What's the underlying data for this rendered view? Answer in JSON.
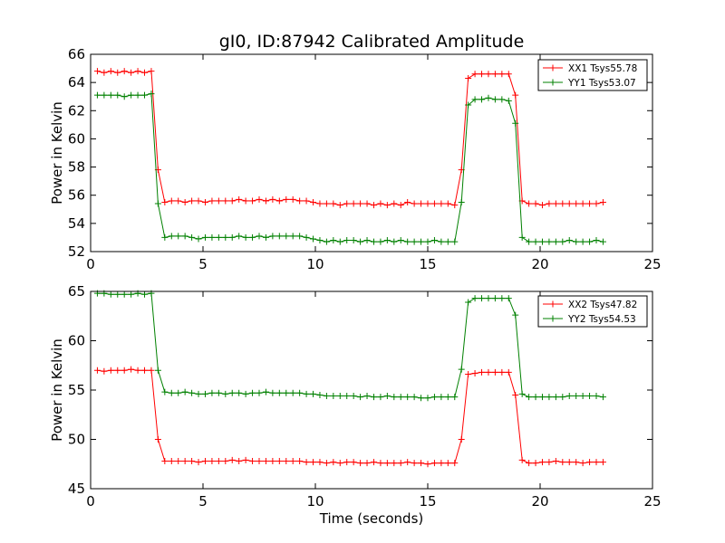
{
  "title": "gI0, ID:87942 Calibrated Amplitude",
  "xlabel": "Time (seconds)",
  "colors": {
    "red": "#ff0000",
    "green": "#008000",
    "axis": "#000000"
  },
  "chart_data": [
    {
      "type": "line",
      "title": "gI0, ID:87942 Calibrated Amplitude",
      "xlabel": "",
      "ylabel": "Power in Kelvin",
      "xlim": [
        0,
        25
      ],
      "ylim": [
        52,
        66
      ],
      "xticks": [
        0,
        5,
        10,
        15,
        20,
        25
      ],
      "yticks": [
        52,
        54,
        56,
        58,
        60,
        62,
        64,
        66
      ],
      "grid": false,
      "legend_loc": "top-right",
      "series": [
        {
          "name": "XX1 Tsys55.78",
          "color": "#ff0000",
          "x": [
            0.3,
            0.6,
            0.9,
            1.2,
            1.5,
            1.8,
            2.1,
            2.4,
            2.7,
            3.0,
            3.3,
            3.6,
            3.9,
            4.2,
            4.5,
            4.8,
            5.1,
            5.4,
            5.7,
            6.0,
            6.3,
            6.6,
            6.9,
            7.2,
            7.5,
            7.8,
            8.1,
            8.4,
            8.7,
            9.0,
            9.3,
            9.6,
            9.9,
            10.2,
            10.5,
            10.8,
            11.1,
            11.4,
            11.7,
            12.0,
            12.3,
            12.6,
            12.9,
            13.2,
            13.5,
            13.8,
            14.1,
            14.4,
            14.7,
            15.0,
            15.3,
            15.6,
            15.9,
            16.2,
            16.5,
            16.8,
            17.1,
            17.4,
            17.7,
            18.0,
            18.3,
            18.6,
            18.9,
            19.2,
            19.5,
            19.8,
            20.1,
            20.4,
            20.7,
            21.0,
            21.3,
            21.6,
            21.9,
            22.2,
            22.5,
            22.8
          ],
          "y": [
            64.8,
            64.7,
            64.8,
            64.7,
            64.8,
            64.7,
            64.8,
            64.7,
            64.8,
            57.8,
            55.5,
            55.6,
            55.6,
            55.5,
            55.6,
            55.6,
            55.5,
            55.6,
            55.6,
            55.6,
            55.6,
            55.7,
            55.6,
            55.6,
            55.7,
            55.6,
            55.7,
            55.6,
            55.7,
            55.7,
            55.6,
            55.6,
            55.5,
            55.4,
            55.4,
            55.4,
            55.3,
            55.4,
            55.4,
            55.4,
            55.4,
            55.3,
            55.4,
            55.3,
            55.4,
            55.3,
            55.5,
            55.4,
            55.4,
            55.4,
            55.4,
            55.4,
            55.4,
            55.3,
            57.8,
            64.3,
            64.6,
            64.6,
            64.6,
            64.6,
            64.6,
            64.6,
            63.1,
            55.6,
            55.4,
            55.4,
            55.3,
            55.4,
            55.4,
            55.4,
            55.4,
            55.4,
            55.4,
            55.4,
            55.4,
            55.5
          ]
        },
        {
          "name": "YY1 Tsys53.07",
          "color": "#008000",
          "x": [
            0.3,
            0.6,
            0.9,
            1.2,
            1.5,
            1.8,
            2.1,
            2.4,
            2.7,
            3.0,
            3.3,
            3.6,
            3.9,
            4.2,
            4.5,
            4.8,
            5.1,
            5.4,
            5.7,
            6.0,
            6.3,
            6.6,
            6.9,
            7.2,
            7.5,
            7.8,
            8.1,
            8.4,
            8.7,
            9.0,
            9.3,
            9.6,
            9.9,
            10.2,
            10.5,
            10.8,
            11.1,
            11.4,
            11.7,
            12.0,
            12.3,
            12.6,
            12.9,
            13.2,
            13.5,
            13.8,
            14.1,
            14.4,
            14.7,
            15.0,
            15.3,
            15.6,
            15.9,
            16.2,
            16.5,
            16.8,
            17.1,
            17.4,
            17.7,
            18.0,
            18.3,
            18.6,
            18.9,
            19.2,
            19.5,
            19.8,
            20.1,
            20.4,
            20.7,
            21.0,
            21.3,
            21.6,
            21.9,
            22.2,
            22.5,
            22.8
          ],
          "y": [
            63.1,
            63.1,
            63.1,
            63.1,
            63.0,
            63.1,
            63.1,
            63.1,
            63.2,
            55.4,
            53.0,
            53.1,
            53.1,
            53.1,
            53.0,
            52.9,
            53.0,
            53.0,
            53.0,
            53.0,
            53.0,
            53.1,
            53.0,
            53.0,
            53.1,
            53.0,
            53.1,
            53.1,
            53.1,
            53.1,
            53.1,
            53.0,
            52.9,
            52.8,
            52.7,
            52.8,
            52.7,
            52.8,
            52.8,
            52.7,
            52.8,
            52.7,
            52.7,
            52.8,
            52.7,
            52.8,
            52.7,
            52.7,
            52.7,
            52.7,
            52.8,
            52.7,
            52.7,
            52.7,
            55.5,
            62.4,
            62.8,
            62.8,
            62.9,
            62.8,
            62.8,
            62.7,
            61.1,
            53.0,
            52.7,
            52.7,
            52.7,
            52.7,
            52.7,
            52.7,
            52.8,
            52.7,
            52.7,
            52.7,
            52.8,
            52.7
          ]
        }
      ]
    },
    {
      "type": "line",
      "title": "",
      "xlabel": "Time (seconds)",
      "ylabel": "Power in Kelvin",
      "xlim": [
        0,
        25
      ],
      "ylim": [
        45,
        65
      ],
      "xticks": [
        0,
        5,
        10,
        15,
        20,
        25
      ],
      "yticks": [
        45,
        50,
        55,
        60,
        65
      ],
      "grid": false,
      "legend_loc": "top-right",
      "series": [
        {
          "name": "XX2 Tsys47.82",
          "color": "#ff0000",
          "x": [
            0.3,
            0.6,
            0.9,
            1.2,
            1.5,
            1.8,
            2.1,
            2.4,
            2.7,
            3.0,
            3.3,
            3.6,
            3.9,
            4.2,
            4.5,
            4.8,
            5.1,
            5.4,
            5.7,
            6.0,
            6.3,
            6.6,
            6.9,
            7.2,
            7.5,
            7.8,
            8.1,
            8.4,
            8.7,
            9.0,
            9.3,
            9.6,
            9.9,
            10.2,
            10.5,
            10.8,
            11.1,
            11.4,
            11.7,
            12.0,
            12.3,
            12.6,
            12.9,
            13.2,
            13.5,
            13.8,
            14.1,
            14.4,
            14.7,
            15.0,
            15.3,
            15.6,
            15.9,
            16.2,
            16.5,
            16.8,
            17.1,
            17.4,
            17.7,
            18.0,
            18.3,
            18.6,
            18.9,
            19.2,
            19.5,
            19.8,
            20.1,
            20.4,
            20.7,
            21.0,
            21.3,
            21.6,
            21.9,
            22.2,
            22.5,
            22.8
          ],
          "y": [
            57.0,
            56.9,
            57.0,
            57.0,
            57.0,
            57.1,
            57.0,
            57.0,
            57.0,
            50.0,
            47.8,
            47.8,
            47.8,
            47.8,
            47.8,
            47.7,
            47.8,
            47.8,
            47.8,
            47.8,
            47.9,
            47.8,
            47.9,
            47.8,
            47.8,
            47.8,
            47.8,
            47.8,
            47.8,
            47.8,
            47.8,
            47.7,
            47.7,
            47.7,
            47.6,
            47.7,
            47.6,
            47.7,
            47.7,
            47.6,
            47.6,
            47.7,
            47.6,
            47.6,
            47.6,
            47.6,
            47.7,
            47.6,
            47.6,
            47.5,
            47.6,
            47.6,
            47.6,
            47.6,
            50.0,
            56.6,
            56.7,
            56.8,
            56.8,
            56.8,
            56.8,
            56.8,
            54.5,
            47.9,
            47.6,
            47.6,
            47.7,
            47.7,
            47.8,
            47.7,
            47.7,
            47.7,
            47.6,
            47.7,
            47.7,
            47.7
          ]
        },
        {
          "name": "YY2 Tsys54.53",
          "color": "#008000",
          "x": [
            0.3,
            0.6,
            0.9,
            1.2,
            1.5,
            1.8,
            2.1,
            2.4,
            2.7,
            3.0,
            3.3,
            3.6,
            3.9,
            4.2,
            4.5,
            4.8,
            5.1,
            5.4,
            5.7,
            6.0,
            6.3,
            6.6,
            6.9,
            7.2,
            7.5,
            7.8,
            8.1,
            8.4,
            8.7,
            9.0,
            9.3,
            9.6,
            9.9,
            10.2,
            10.5,
            10.8,
            11.1,
            11.4,
            11.7,
            12.0,
            12.3,
            12.6,
            12.9,
            13.2,
            13.5,
            13.8,
            14.1,
            14.4,
            14.7,
            15.0,
            15.3,
            15.6,
            15.9,
            16.2,
            16.5,
            16.8,
            17.1,
            17.4,
            17.7,
            18.0,
            18.3,
            18.6,
            18.9,
            19.2,
            19.5,
            19.8,
            20.1,
            20.4,
            20.7,
            21.0,
            21.3,
            21.6,
            21.9,
            22.2,
            22.5,
            22.8
          ],
          "y": [
            64.8,
            64.8,
            64.7,
            64.7,
            64.7,
            64.7,
            64.8,
            64.7,
            64.8,
            57.0,
            54.8,
            54.7,
            54.7,
            54.8,
            54.7,
            54.6,
            54.6,
            54.7,
            54.7,
            54.6,
            54.7,
            54.7,
            54.6,
            54.7,
            54.7,
            54.8,
            54.7,
            54.7,
            54.7,
            54.7,
            54.7,
            54.6,
            54.6,
            54.5,
            54.4,
            54.4,
            54.4,
            54.4,
            54.4,
            54.3,
            54.4,
            54.3,
            54.3,
            54.4,
            54.3,
            54.3,
            54.3,
            54.3,
            54.2,
            54.2,
            54.3,
            54.3,
            54.3,
            54.3,
            57.1,
            63.9,
            64.3,
            64.3,
            64.3,
            64.3,
            64.3,
            64.3,
            62.6,
            54.6,
            54.3,
            54.3,
            54.3,
            54.3,
            54.3,
            54.3,
            54.4,
            54.4,
            54.4,
            54.4,
            54.4,
            54.3
          ]
        }
      ]
    }
  ]
}
